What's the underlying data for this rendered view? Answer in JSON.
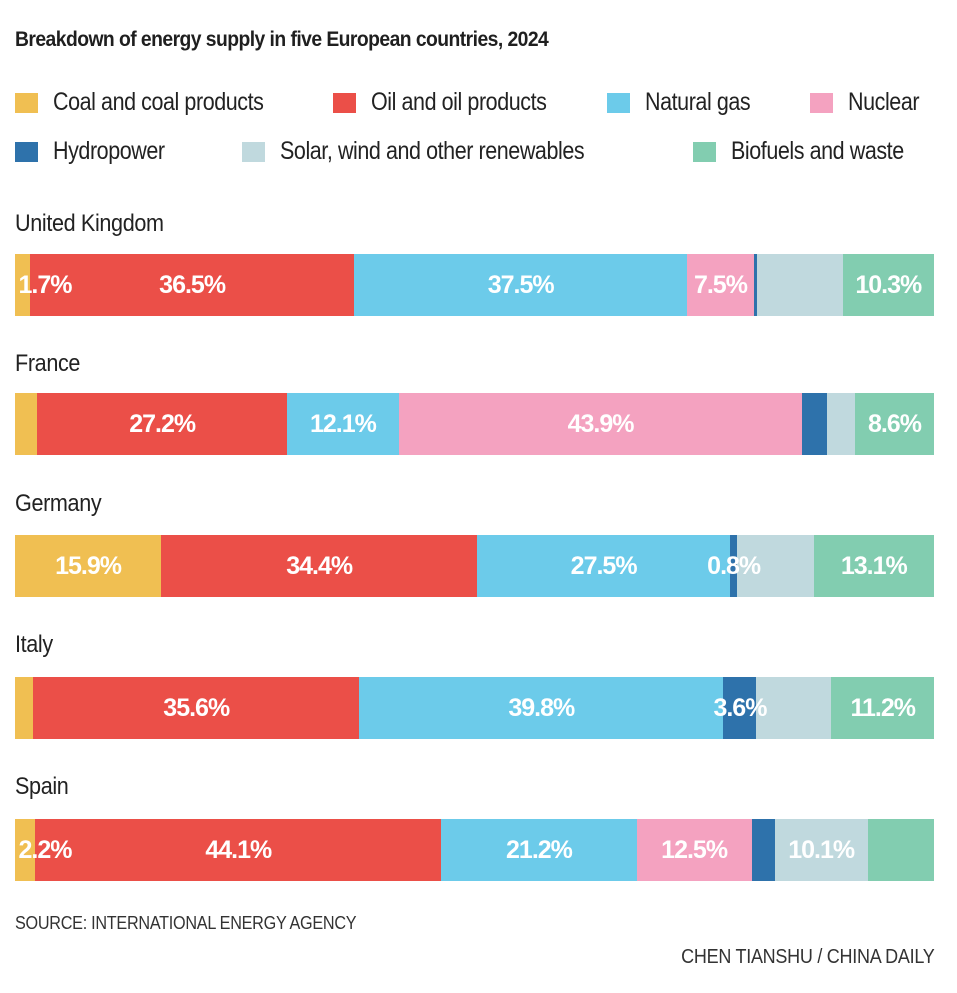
{
  "chart_data": {
    "type": "bar",
    "orientation": "horizontal",
    "stacked": true,
    "title": "Breakdown of energy supply in five European countries, 2024",
    "xlabel": "",
    "ylabel": "",
    "unit": "%",
    "categories": [
      "United Kingdom",
      "France",
      "Germany",
      "Italy",
      "Spain"
    ],
    "series": [
      {
        "name": "Coal and coal products",
        "color": "#f0bf52",
        "values": [
          1.7,
          2.4,
          15.9,
          2.0,
          2.2
        ],
        "labels": [
          "1.7%",
          "",
          "15.9%",
          "",
          "2.2%"
        ]
      },
      {
        "name": "Oil and oil products",
        "color": "#eb4f48",
        "values": [
          36.5,
          27.2,
          34.4,
          35.6,
          44.1
        ],
        "labels": [
          "36.5%",
          "27.2%",
          "34.4%",
          "35.6%",
          "44.1%"
        ]
      },
      {
        "name": "Natural gas",
        "color": "#6ccbea",
        "values": [
          37.5,
          12.1,
          27.5,
          39.8,
          21.2
        ],
        "labels": [
          "37.5%",
          "12.1%",
          "27.5%",
          "39.8%",
          "21.2%"
        ]
      },
      {
        "name": "Nuclear",
        "color": "#f4a2c0",
        "values": [
          7.5,
          43.9,
          0,
          0,
          12.5
        ],
        "labels": [
          "7.5%",
          "43.9%",
          "",
          "",
          "12.5%"
        ]
      },
      {
        "name": "Hydropower",
        "color": "#2e72ab",
        "values": [
          0.4,
          2.7,
          0.8,
          3.6,
          2.5
        ],
        "labels": [
          "",
          "",
          "0.8%",
          "3.6%",
          ""
        ]
      },
      {
        "name": "Solar, wind and other renewables",
        "color": "#c0d9de",
        "values": [
          9.6,
          3.0,
          8.3,
          8.2,
          10.1
        ],
        "labels": [
          "",
          "",
          "",
          "",
          "10.1%"
        ]
      },
      {
        "name": "Biofuels and waste",
        "color": "#82cdb0",
        "values": [
          10.3,
          8.6,
          13.1,
          11.2,
          7.2
        ],
        "labels": [
          "10.3%",
          "8.6%",
          "13.1%",
          "11.2%",
          ""
        ]
      }
    ],
    "legend_position": "top",
    "grid": false
  },
  "legend": [
    {
      "label": "Coal and coal products",
      "color": "#f0bf52"
    },
    {
      "label": "Oil and oil products",
      "color": "#eb4f48"
    },
    {
      "label": "Natural gas",
      "color": "#6ccbea"
    },
    {
      "label": "Nuclear",
      "color": "#f4a2c0"
    },
    {
      "label": "Hydropower",
      "color": "#2e72ab"
    },
    {
      "label": "Solar, wind and other renewables",
      "color": "#c0d9de"
    },
    {
      "label": "Biofuels and waste",
      "color": "#82cdb0"
    }
  ],
  "footer": {
    "source": "SOURCE: INTERNATIONAL ENERGY AGENCY",
    "credit": "CHEN TIANSHU / CHINA DAILY"
  }
}
